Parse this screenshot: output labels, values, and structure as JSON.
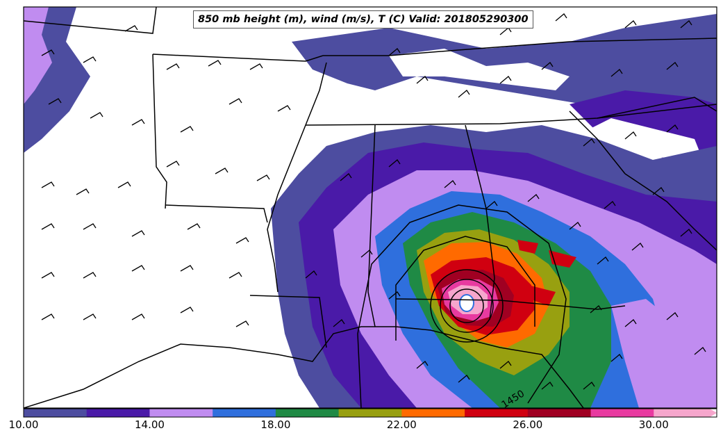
{
  "title": "850 mb height (m), wind (m/s), T (C) Valid: 201805290300",
  "contour_label": "1450",
  "colorbar": {
    "tick_labels": [
      "10.00",
      "14.00",
      "18.00",
      "22.00",
      "26.00",
      "30.00"
    ],
    "colors": [
      "#4d4da0",
      "#4a1aa8",
      "#c08cf0",
      "#2f6fdd",
      "#1f8a45",
      "#98a010",
      "#ff6a00",
      "#d00010",
      "#a00022",
      "#e83aa0",
      "#f6a6cc"
    ]
  },
  "chart_data": {
    "type": "heatmap",
    "title": "850 mb height (m), wind (m/s), T (C) Valid: 201805290300",
    "variable": "T (C)",
    "color_range": [
      10,
      32
    ],
    "levels": [
      10,
      12,
      14,
      16,
      18,
      20,
      22,
      24,
      26,
      28,
      30,
      32
    ],
    "colorbar_ticks": [
      10,
      14,
      18,
      22,
      26,
      30
    ],
    "height_contour_labels": [
      1450
    ]
  }
}
